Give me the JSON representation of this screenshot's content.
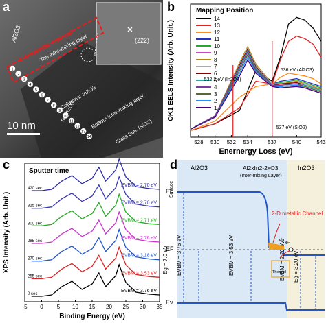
{
  "panel_a": {
    "label": "a",
    "layers": {
      "al2o3": "Al2O3",
      "channel": "2-D metallic channel",
      "top_mix": "Top inter-mixing layer",
      "columnar": "Columnar In2O3",
      "nc": "nc-In2O3",
      "bottom_mix": "Bottom inter-mixing layer",
      "glass": "Glass Sub. (SiO2)"
    },
    "inset_label": "(222)",
    "scalebar": "10 nm",
    "points": [
      "1",
      "2",
      "3",
      "4",
      "5",
      "6",
      "7",
      "8",
      "9",
      "10",
      "11",
      "12",
      "13",
      "14"
    ]
  },
  "panel_b": {
    "label": "b",
    "legend_title": "Mapping Position",
    "annotations": {
      "in2o3": "532.2 eV (In2O3)",
      "al2o3": "536 eV (Al2O3)",
      "sio2": "537 eV (SiO2)"
    }
  },
  "panel_c": {
    "label": "c",
    "header": "Sputter time"
  },
  "panel_d": {
    "label": "d",
    "surface": "Surface",
    "regions": [
      "Al2O3",
      "Al2xIn2-2xO3",
      "In2O3"
    ],
    "mix_caption": "(Inter-mixing Layer)",
    "levels": {
      "ec": "Ec",
      "ef": "EF",
      "ev": "Ev"
    },
    "channel_label": "2-D metallic Channel",
    "vo_label": "Vo",
    "e_label": "e-",
    "vbm_left": "EVBM = 3.76 eV",
    "eg_left": "Eg = 7.0 eV",
    "vbm_mid": "EVBM = 3.53 eV",
    "vbm_right": "EVBM = 2.70 eV",
    "eg_right": "Eg = 3.20 eV",
    "defect_label": "Thermal"
  },
  "chart_data": [
    {
      "type": "line",
      "panel": "b",
      "xlabel": "Enernergy Loss (eV)",
      "ylabel": "OK1 EELS Intensity (Arb. Unit.)",
      "xlim": [
        527,
        543
      ],
      "xticks": [
        "528",
        "530",
        "532",
        "534",
        "537",
        "540",
        "543"
      ],
      "legend_placement": "top-left",
      "series": [
        {
          "name": "14",
          "color": "#000000",
          "values": [
            [
              527,
              0.05
            ],
            [
              530,
              0.1
            ],
            [
              533,
              0.2
            ],
            [
              535,
              0.5
            ],
            [
              537,
              0.42
            ],
            [
              538,
              0.6
            ],
            [
              539,
              0.85
            ],
            [
              540,
              0.9
            ],
            [
              541,
              0.88
            ],
            [
              542,
              0.82
            ],
            [
              543,
              0.72
            ]
          ]
        },
        {
          "name": "13",
          "color": "#e02020",
          "values": [
            [
              527,
              0.05
            ],
            [
              530,
              0.1
            ],
            [
              533,
              0.22
            ],
            [
              535,
              0.42
            ],
            [
              537,
              0.4
            ],
            [
              538,
              0.58
            ],
            [
              539,
              0.72
            ],
            [
              540,
              0.76
            ],
            [
              541,
              0.74
            ],
            [
              542,
              0.7
            ],
            [
              543,
              0.6
            ]
          ]
        },
        {
          "name": "12",
          "color": "#ff8c1a",
          "values": [
            [
              527,
              0.05
            ],
            [
              530,
              0.12
            ],
            [
              533,
              0.3
            ],
            [
              535,
              0.38
            ],
            [
              537,
              0.4
            ],
            [
              538,
              0.45
            ],
            [
              539,
              0.48
            ],
            [
              540,
              0.47
            ],
            [
              541,
              0.46
            ],
            [
              542,
              0.44
            ],
            [
              543,
              0.4
            ]
          ]
        },
        {
          "name": "11",
          "color": "#2233cc",
          "values": [
            [
              527,
              0.06
            ],
            [
              530,
              0.15
            ],
            [
              533,
              0.5
            ],
            [
              534,
              0.62
            ],
            [
              535,
              0.5
            ],
            [
              537,
              0.4
            ],
            [
              538,
              0.42
            ],
            [
              540,
              0.44
            ],
            [
              541,
              0.42
            ],
            [
              543,
              0.38
            ]
          ]
        },
        {
          "name": "10",
          "color": "#22aa33",
          "values": [
            [
              527,
              0.06
            ],
            [
              530,
              0.15
            ],
            [
              533,
              0.52
            ],
            [
              534,
              0.64
            ],
            [
              535,
              0.52
            ],
            [
              537,
              0.4
            ],
            [
              538,
              0.41
            ],
            [
              540,
              0.43
            ],
            [
              541,
              0.41
            ],
            [
              543,
              0.37
            ]
          ]
        },
        {
          "name": "9",
          "color": "#cc44cc",
          "values": [
            [
              527,
              0.06
            ],
            [
              530,
              0.16
            ],
            [
              533,
              0.54
            ],
            [
              534,
              0.66
            ],
            [
              535,
              0.54
            ],
            [
              537,
              0.4
            ],
            [
              538,
              0.4
            ],
            [
              540,
              0.42
            ],
            [
              541,
              0.4
            ],
            [
              543,
              0.36
            ]
          ]
        },
        {
          "name": "8",
          "color": "#b8860b",
          "values": [
            [
              527,
              0.06
            ],
            [
              530,
              0.16
            ],
            [
              533,
              0.56
            ],
            [
              534,
              0.68
            ],
            [
              535,
              0.55
            ],
            [
              537,
              0.4
            ],
            [
              538,
              0.4
            ],
            [
              540,
              0.42
            ],
            [
              541,
              0.4
            ],
            [
              543,
              0.36
            ]
          ]
        },
        {
          "name": "7",
          "color": "#aaaaaa",
          "values": [
            [
              527,
              0.06
            ],
            [
              530,
              0.16
            ],
            [
              533,
              0.55
            ],
            [
              534,
              0.67
            ],
            [
              535,
              0.54
            ],
            [
              537,
              0.4
            ],
            [
              538,
              0.4
            ],
            [
              540,
              0.41
            ],
            [
              541,
              0.4
            ],
            [
              543,
              0.35
            ]
          ]
        },
        {
          "name": "6",
          "color": "#8b0000",
          "values": [
            [
              527,
              0.06
            ],
            [
              530,
              0.16
            ],
            [
              533,
              0.54
            ],
            [
              534,
              0.66
            ],
            [
              535,
              0.53
            ],
            [
              537,
              0.39
            ],
            [
              538,
              0.4
            ],
            [
              540,
              0.41
            ],
            [
              541,
              0.39
            ],
            [
              543,
              0.35
            ]
          ]
        },
        {
          "name": "5",
          "color": "#20b2aa",
          "values": [
            [
              527,
              0.06
            ],
            [
              530,
              0.16
            ],
            [
              533,
              0.53
            ],
            [
              534,
              0.65
            ],
            [
              535,
              0.52
            ],
            [
              537,
              0.39
            ],
            [
              538,
              0.39
            ],
            [
              540,
              0.4
            ],
            [
              541,
              0.39
            ],
            [
              543,
              0.35
            ]
          ]
        },
        {
          "name": "4",
          "color": "#7a3aa0",
          "values": [
            [
              527,
              0.06
            ],
            [
              530,
              0.16
            ],
            [
              533,
              0.52
            ],
            [
              534,
              0.64
            ],
            [
              535,
              0.51
            ],
            [
              537,
              0.39
            ],
            [
              538,
              0.39
            ],
            [
              540,
              0.4
            ],
            [
              541,
              0.38
            ],
            [
              543,
              0.34
            ]
          ]
        },
        {
          "name": "3",
          "color": "#556b2f",
          "values": [
            [
              527,
              0.06
            ],
            [
              530,
              0.15
            ],
            [
              533,
              0.5
            ],
            [
              534,
              0.62
            ],
            [
              535,
              0.5
            ],
            [
              537,
              0.38
            ],
            [
              538,
              0.38
            ],
            [
              540,
              0.39
            ],
            [
              541,
              0.38
            ],
            [
              543,
              0.34
            ]
          ]
        },
        {
          "name": "2",
          "color": "#1e90ff",
          "values": [
            [
              527,
              0.06
            ],
            [
              530,
              0.15
            ],
            [
              533,
              0.48
            ],
            [
              534,
              0.6
            ],
            [
              535,
              0.49
            ],
            [
              537,
              0.38
            ],
            [
              538,
              0.38
            ],
            [
              540,
              0.39
            ],
            [
              541,
              0.37
            ],
            [
              543,
              0.33
            ]
          ]
        },
        {
          "name": "1",
          "color": "#4b0082",
          "values": [
            [
              527,
              0.06
            ],
            [
              530,
              0.15
            ],
            [
              533,
              0.46
            ],
            [
              534,
              0.58
            ],
            [
              535,
              0.48
            ],
            [
              537,
              0.38
            ],
            [
              538,
              0.37
            ],
            [
              540,
              0.38
            ],
            [
              541,
              0.37
            ],
            [
              543,
              0.33
            ]
          ]
        }
      ]
    },
    {
      "type": "line",
      "panel": "c",
      "xlabel": "Binding Energy (eV)",
      "ylabel": "XPS Intensity (Arb. Unit.)",
      "xlim": [
        -5,
        35
      ],
      "xticks": [
        "-5",
        "0",
        "5",
        "10",
        "15",
        "20",
        "25",
        "30",
        "35"
      ],
      "series": [
        {
          "name": "420 sec",
          "color": "#2a2aa8",
          "vbm": "EVBM = 2.70 eV"
        },
        {
          "name": "315 sec",
          "color": "#3a3ab0",
          "vbm": "EVBM = 2.70 eV"
        },
        {
          "name": "300 sec",
          "color": "#22aa22",
          "vbm": "EVBM = 2.71 eV"
        },
        {
          "name": "285 sec",
          "color": "#cc33cc",
          "vbm": "EVBM = 2.76 eV"
        },
        {
          "name": "270 sec",
          "color": "#2255cc",
          "vbm": "EVBM = 3.18 eV"
        },
        {
          "name": "255 sec",
          "color": "#dd2222",
          "vbm": "EVBM = 3.53 eV"
        },
        {
          "name": "0 sec",
          "color": "#000000",
          "vbm": "EVBM = 3.76 eV"
        }
      ]
    }
  ]
}
